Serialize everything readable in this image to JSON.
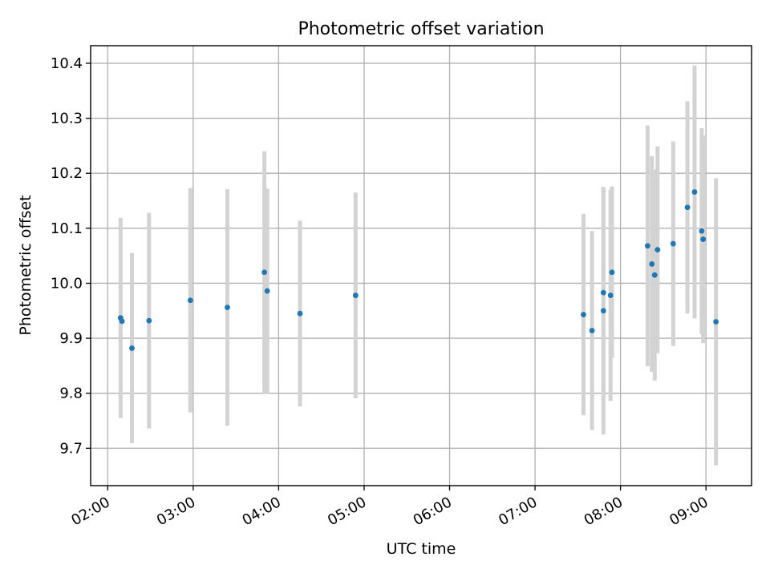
{
  "chart_data": {
    "type": "scatter",
    "title": "Photometric offset variation",
    "xlabel": "UTC time",
    "ylabel": "Photometric offset",
    "x_unit": "hours",
    "xlim": [
      "01:48",
      "09:32"
    ],
    "ylim": [
      9.632,
      10.432
    ],
    "x_ticks": [
      {
        "label": "02:00",
        "hour": 2
      },
      {
        "label": "03:00",
        "hour": 3
      },
      {
        "label": "04:00",
        "hour": 4
      },
      {
        "label": "05:00",
        "hour": 5
      },
      {
        "label": "06:00",
        "hour": 6
      },
      {
        "label": "07:00",
        "hour": 7
      },
      {
        "label": "08:00",
        "hour": 8
      },
      {
        "label": "09:00",
        "hour": 9
      }
    ],
    "y_ticks": [
      {
        "label": "9.7",
        "value": 9.7
      },
      {
        "label": "9.8",
        "value": 9.8
      },
      {
        "label": "9.9",
        "value": 9.9
      },
      {
        "label": "10.0",
        "value": 10.0
      },
      {
        "label": "10.1",
        "value": 10.1
      },
      {
        "label": "10.2",
        "value": 10.2
      },
      {
        "label": "10.3",
        "value": 10.3
      },
      {
        "label": "10.4",
        "value": 10.4
      }
    ],
    "grid": true,
    "point_color": "#1f77b4",
    "errorbar_color": "#d3d3d3",
    "points": [
      {
        "time": "02:09",
        "y": 9.937,
        "err": 0.182
      },
      {
        "time": "02:10",
        "y": 9.931,
        "err": 0.0
      },
      {
        "time": "02:17",
        "y": 9.882,
        "err": 0.173
      },
      {
        "time": "02:29",
        "y": 9.932,
        "err": 0.196
      },
      {
        "time": "02:58",
        "y": 9.969,
        "err": 0.204
      },
      {
        "time": "03:24",
        "y": 9.956,
        "err": 0.215
      },
      {
        "time": "03:50",
        "y": 10.02,
        "err": 0.22
      },
      {
        "time": "03:52",
        "y": 9.986,
        "err": 0.186
      },
      {
        "time": "04:15",
        "y": 9.945,
        "err": 0.169
      },
      {
        "time": "04:54",
        "y": 9.978,
        "err": 0.187
      },
      {
        "time": "07:34",
        "y": 9.943,
        "err": 0.183
      },
      {
        "time": "07:40",
        "y": 9.914,
        "err": 0.181
      },
      {
        "time": "07:48",
        "y": 9.95,
        "err": 0.225
      },
      {
        "time": "07:48",
        "y": 9.983,
        "err": 0.192
      },
      {
        "time": "07:53",
        "y": 9.978,
        "err": 0.192
      },
      {
        "time": "07:54",
        "y": 10.02,
        "err": 0.156
      },
      {
        "time": "08:19",
        "y": 10.068,
        "err": 0.219
      },
      {
        "time": "08:22",
        "y": 10.035,
        "err": 0.196
      },
      {
        "time": "08:24",
        "y": 10.015,
        "err": 0.192
      },
      {
        "time": "08:26",
        "y": 10.061,
        "err": 0.188
      },
      {
        "time": "08:37",
        "y": 10.072,
        "err": 0.186
      },
      {
        "time": "08:47",
        "y": 10.138,
        "err": 0.193
      },
      {
        "time": "08:52",
        "y": 10.166,
        "err": 0.23
      },
      {
        "time": "08:57",
        "y": 10.095,
        "err": 0.187
      },
      {
        "time": "08:58",
        "y": 10.08,
        "err": 0.189
      },
      {
        "time": "09:07",
        "y": 9.93,
        "err": 0.261
      }
    ]
  }
}
